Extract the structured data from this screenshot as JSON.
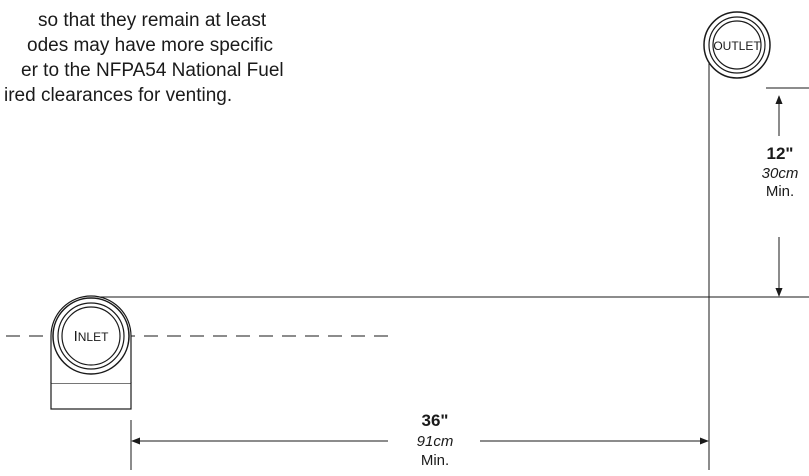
{
  "intro_text": {
    "lines": [
      "so that they remain at least",
      "odes may have more specific",
      "er to the NFPA54 National Fuel",
      "ired clearances for venting."
    ]
  },
  "outlet": {
    "label": "OUTLET"
  },
  "inlet": {
    "label_initial": "I",
    "label_rest": "NLET"
  },
  "vertical_clearance": {
    "imperial": "12\"",
    "metric": "30cm",
    "note": "Min."
  },
  "horizontal_clearance": {
    "imperial": "36\"",
    "metric": "91cm",
    "note": "Min."
  },
  "colors": {
    "line": "#1a1a1a",
    "background": "#ffffff"
  }
}
